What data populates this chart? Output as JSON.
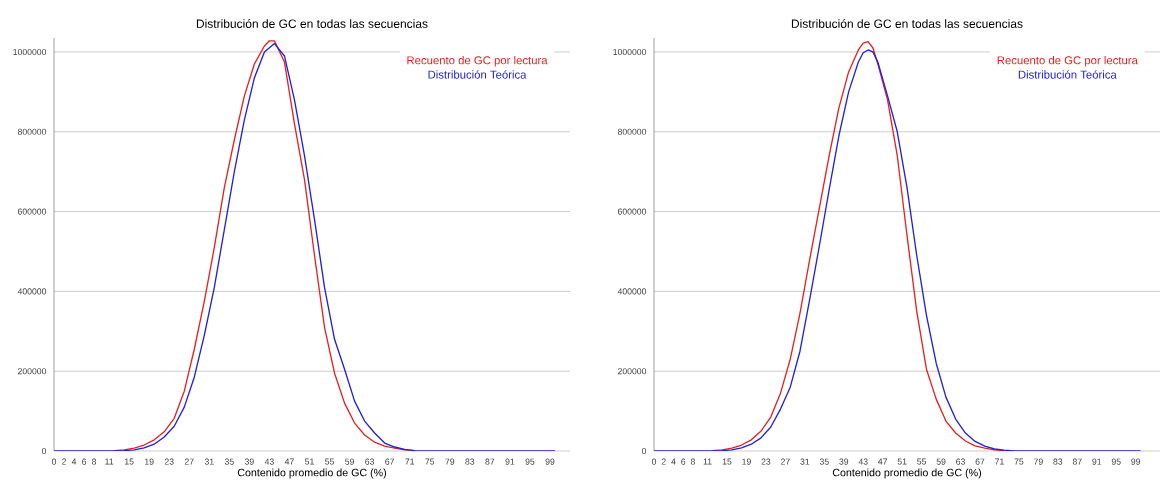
{
  "chart_data": [
    {
      "type": "line",
      "title": "Distribución de GC en todas las secuencias",
      "xlabel": "Contenido promedio de GC (%)",
      "xlim": [
        0,
        103
      ],
      "ylim": [
        0,
        1035000
      ],
      "xticks": [
        0,
        2,
        4,
        6,
        8,
        11,
        15,
        19,
        23,
        27,
        31,
        35,
        39,
        43,
        47,
        51,
        55,
        59,
        63,
        67,
        71,
        75,
        79,
        83,
        87,
        91,
        95,
        99
      ],
      "yticks": [
        0,
        200000,
        400000,
        600000,
        800000,
        1000000
      ],
      "grid": "y",
      "legend": "top right",
      "series": [
        {
          "name": "Recuento de GC por lectura",
          "color": "#e82020",
          "x": [
            12,
            14,
            16,
            18,
            20,
            22,
            24,
            26,
            28,
            30,
            32,
            34,
            36,
            38,
            40,
            42,
            43,
            44,
            46,
            48,
            50,
            52,
            54,
            56,
            58,
            60,
            62,
            64,
            66,
            68,
            70,
            72
          ],
          "values": [
            1000,
            3000,
            7000,
            15000,
            28000,
            48000,
            82000,
            150000,
            255000,
            375000,
            510000,
            660000,
            780000,
            890000,
            970000,
            1015000,
            1028000,
            1028000,
            975000,
            820000,
            680000,
            490000,
            310000,
            195000,
            120000,
            70000,
            40000,
            22000,
            12000,
            7000,
            3000,
            1000
          ]
        },
        {
          "name": "Distribución Teórica",
          "color": "#2020e0",
          "x": [
            0,
            12,
            14,
            16,
            18,
            20,
            22,
            24,
            26,
            28,
            30,
            32,
            34,
            36,
            38,
            40,
            42,
            44,
            46,
            48,
            50,
            52,
            54,
            56,
            58,
            60,
            62,
            64,
            66,
            68,
            70,
            72,
            74,
            80,
            90,
            100
          ],
          "values": [
            0,
            0,
            1000,
            3000,
            8000,
            17000,
            35000,
            62000,
            110000,
            185000,
            290000,
            410000,
            555000,
            700000,
            830000,
            935000,
            1000000,
            1021000,
            990000,
            880000,
            740000,
            580000,
            410000,
            280000,
            205000,
            125000,
            75000,
            45000,
            20000,
            10000,
            4000,
            1000,
            0,
            0,
            0,
            0
          ]
        }
      ]
    },
    {
      "type": "line",
      "title": "Distribución de GC en todas las secuencias",
      "xlabel": "Contenido promedio de GC (%)",
      "xlim": [
        0,
        104
      ],
      "ylim": [
        0,
        1035000
      ],
      "xticks": [
        0,
        2,
        4,
        6,
        8,
        11,
        15,
        19,
        23,
        27,
        31,
        35,
        39,
        43,
        47,
        51,
        55,
        59,
        63,
        67,
        71,
        75,
        79,
        83,
        87,
        91,
        95,
        99
      ],
      "yticks": [
        0,
        200000,
        400000,
        600000,
        800000,
        1000000
      ],
      "grid": "y",
      "legend": "top right",
      "series": [
        {
          "name": "Recuento de GC por lectura",
          "color": "#e82020",
          "x": [
            12,
            14,
            16,
            18,
            20,
            22,
            24,
            26,
            28,
            30,
            32,
            34,
            36,
            38,
            40,
            42,
            43,
            44,
            45,
            46,
            48,
            50,
            52,
            54,
            56,
            58,
            60,
            62,
            64,
            66,
            68,
            70,
            72
          ],
          "values": [
            1000,
            3000,
            7000,
            15000,
            28000,
            50000,
            85000,
            145000,
            230000,
            345000,
            480000,
            610000,
            740000,
            860000,
            950000,
            1005000,
            1022000,
            1026000,
            1010000,
            970000,
            880000,
            740000,
            540000,
            350000,
            205000,
            130000,
            75000,
            45000,
            25000,
            13000,
            7000,
            3000,
            1000
          ]
        },
        {
          "name": "Distribución Teórica",
          "color": "#2020e0",
          "x": [
            0,
            12,
            14,
            16,
            18,
            20,
            22,
            24,
            26,
            28,
            30,
            32,
            34,
            36,
            38,
            40,
            42,
            43,
            44,
            45,
            46,
            48,
            50,
            52,
            54,
            56,
            58,
            60,
            62,
            64,
            66,
            68,
            70,
            72,
            74,
            80,
            90,
            100
          ],
          "values": [
            0,
            0,
            1000,
            3000,
            8000,
            17000,
            33000,
            60000,
            105000,
            160000,
            250000,
            380000,
            515000,
            655000,
            790000,
            900000,
            975000,
            998000,
            1005000,
            1000000,
            975000,
            890000,
            800000,
            660000,
            490000,
            340000,
            220000,
            135000,
            80000,
            45000,
            24000,
            12000,
            5000,
            2000,
            0,
            0,
            0,
            0
          ]
        }
      ]
    }
  ]
}
